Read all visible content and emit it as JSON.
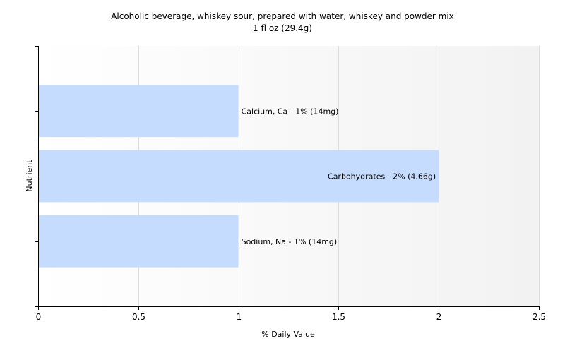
{
  "chart_data": {
    "type": "bar",
    "orientation": "horizontal",
    "title": "Alcoholic beverage, whiskey sour, prepared with water, whiskey and powder mix",
    "subtitle": "1 fl oz (29.4g)",
    "xlabel": "% Daily Value",
    "ylabel": "Nutrient",
    "xlim": [
      0,
      2.5
    ],
    "xticks": [
      "0",
      "0.5",
      "1",
      "1.5",
      "2",
      "2.5"
    ],
    "grid": true,
    "categories": [
      "Calcium, Ca",
      "Carbohydrates",
      "Sodium, Na"
    ],
    "values": [
      1,
      2,
      1
    ],
    "labels": [
      "Calcium, Ca - 1% (14mg)",
      "Carbohydrates - 2% (4.66g)",
      "Sodium, Na - 1% (14mg)"
    ],
    "bar_color": "#c6dcff"
  }
}
